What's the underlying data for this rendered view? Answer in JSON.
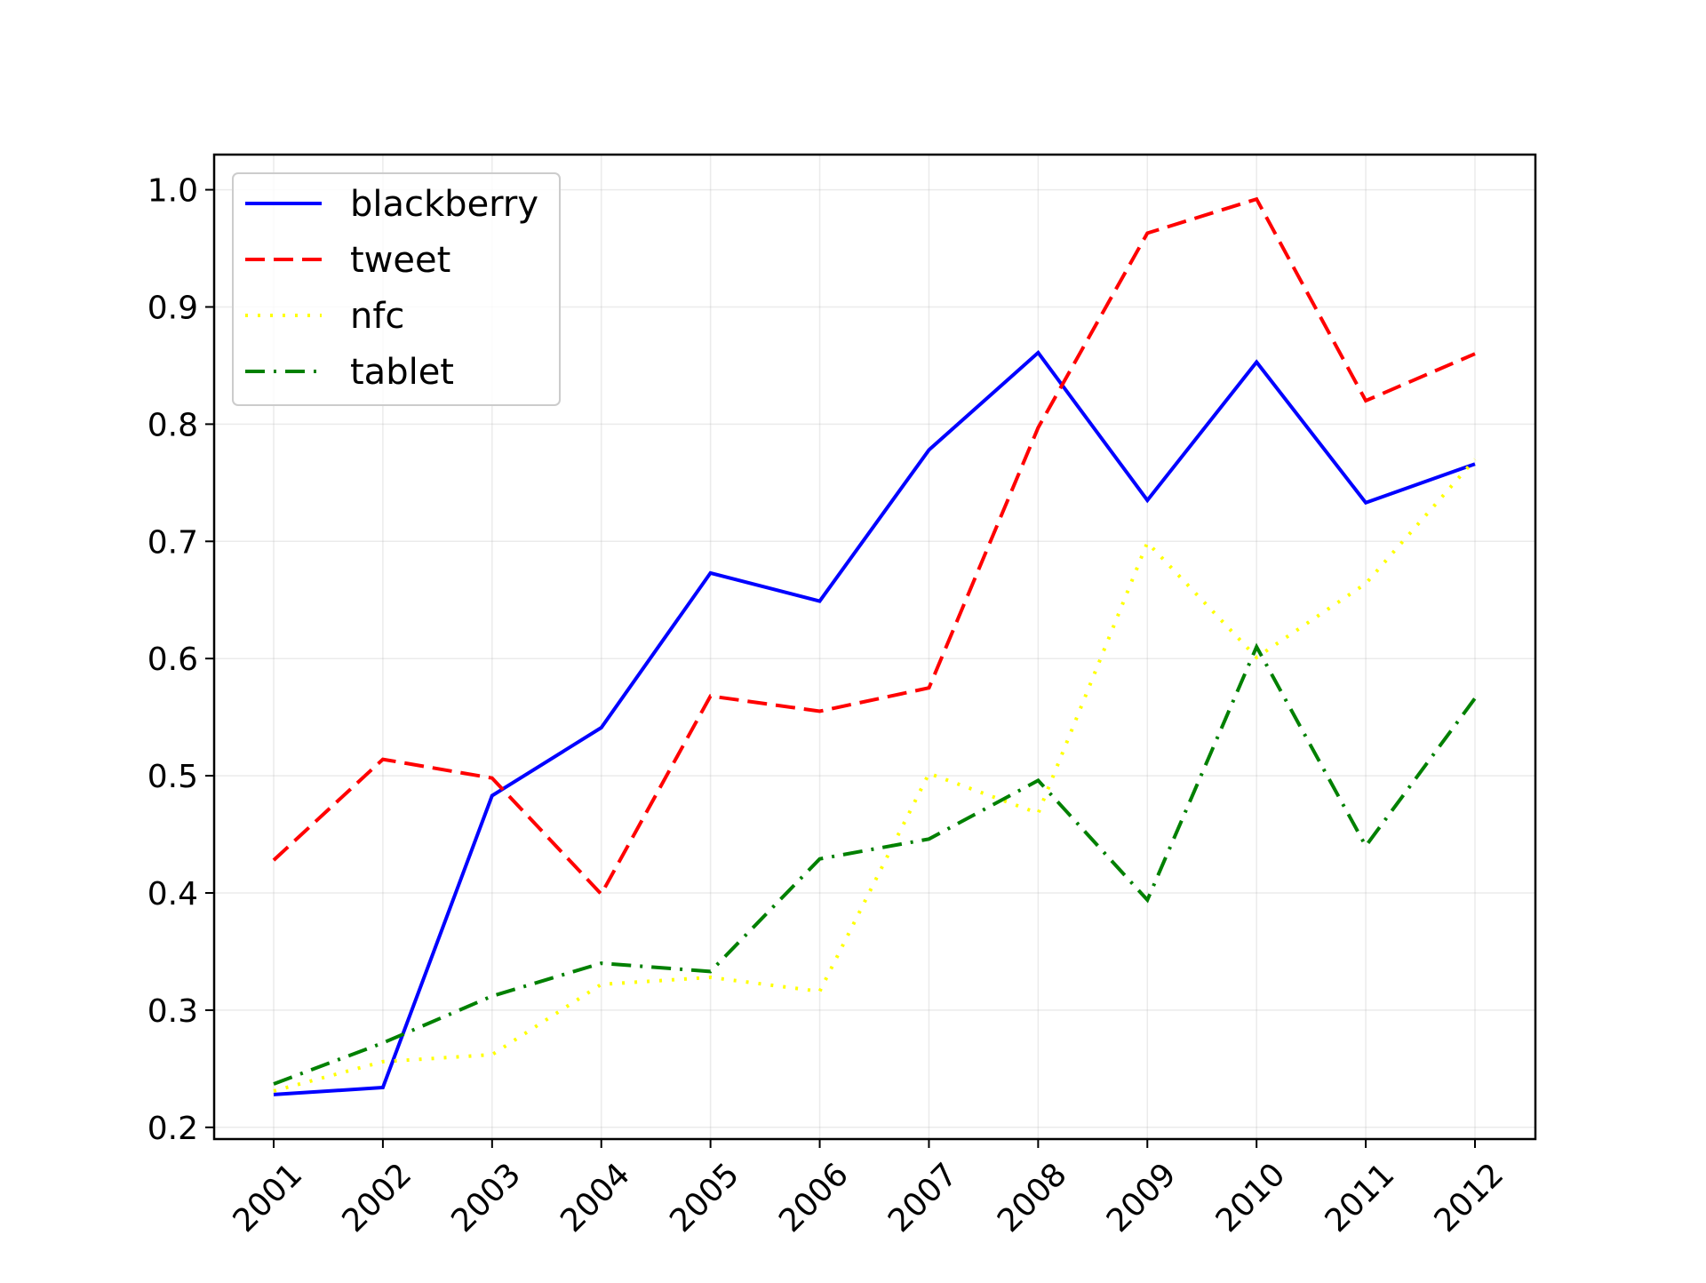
{
  "chart_data": {
    "type": "line",
    "title": "",
    "xlabel": "",
    "ylabel": "",
    "categories": [
      "2001",
      "2002",
      "2003",
      "2004",
      "2005",
      "2006",
      "2007",
      "2008",
      "2009",
      "2010",
      "2011",
      "2012"
    ],
    "ylim": [
      0.19,
      1.03
    ],
    "yticks": [
      0.2,
      0.3,
      0.4,
      0.5,
      0.6,
      0.7,
      0.8,
      0.9,
      1.0
    ],
    "ytick_labels": [
      "0.2",
      "0.3",
      "0.4",
      "0.5",
      "0.6",
      "0.7",
      "0.8",
      "0.9",
      "1.0"
    ],
    "grid": true,
    "legend_position": "top-left",
    "series": [
      {
        "name": "blackberry",
        "color": "#0000ff",
        "style": "solid",
        "values": [
          0.228,
          0.234,
          0.483,
          0.541,
          0.673,
          0.649,
          0.778,
          0.861,
          0.735,
          0.853,
          0.733,
          0.766
        ]
      },
      {
        "name": "tweet",
        "color": "#ff0000",
        "style": "dashed",
        "values": [
          0.428,
          0.514,
          0.498,
          0.399,
          0.568,
          0.555,
          0.575,
          0.797,
          0.963,
          0.992,
          0.82,
          0.86
        ]
      },
      {
        "name": "nfc",
        "color": "#ffff00",
        "style": "dotted",
        "values": [
          0.231,
          0.256,
          0.262,
          0.322,
          0.328,
          0.316,
          0.502,
          0.468,
          0.699,
          0.601,
          0.664,
          0.77
        ]
      },
      {
        "name": "tablet",
        "color": "#008000",
        "style": "dashdot",
        "values": [
          0.237,
          0.272,
          0.312,
          0.34,
          0.333,
          0.429,
          0.446,
          0.496,
          0.394,
          0.61,
          0.44,
          0.566
        ]
      }
    ]
  }
}
